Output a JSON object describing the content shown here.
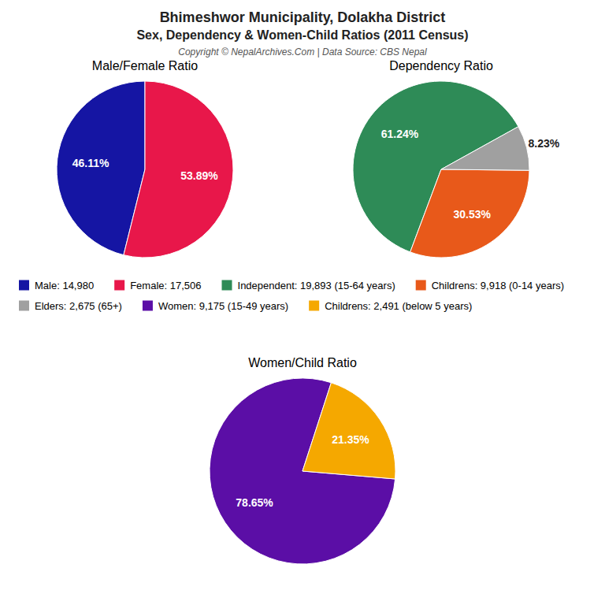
{
  "title": "Bhimeshwor Municipality, Dolakha District",
  "subtitle": "Sex, Dependency & Women-Child Ratios (2011 Census)",
  "annotations": [
    "Copyright © NepalArchives.Com | Data Source: CBS Nepal"
  ],
  "chart_data": [
    {
      "type": "pie",
      "title": "Male/Female Ratio",
      "categories": [
        "Male: 14,980",
        "Female: 17,506"
      ],
      "values": [
        46.11,
        53.89
      ],
      "value_labels": [
        "46.11%",
        "53.89%"
      ],
      "colors": [
        "#1515A3",
        "#E8174A"
      ],
      "data_labels": true,
      "legend": "bottom"
    },
    {
      "type": "pie",
      "title": "Dependency Ratio",
      "categories": [
        "Independent: 19,893 (15-64 years)",
        "Childrens: 9,918 (0-14 years)",
        "Elders: 2,675 (65+)"
      ],
      "values": [
        61.24,
        30.53,
        8.23
      ],
      "value_labels": [
        "61.24%",
        "30.53%",
        "8.23%"
      ],
      "colors": [
        "#2E8B57",
        "#E8591A",
        "#A0A0A0"
      ],
      "data_labels": true,
      "legend": "bottom"
    },
    {
      "type": "pie",
      "title": "Women/Child Ratio",
      "categories": [
        "Women: 9,175 (15-49 years)",
        "Childrens: 2,491 (below 5 years)"
      ],
      "values": [
        78.65,
        21.35
      ],
      "value_labels": [
        "78.65%",
        "21.35%"
      ],
      "colors": [
        "#5B0EA6",
        "#F5A800"
      ],
      "data_labels": true,
      "legend": "bottom"
    }
  ]
}
